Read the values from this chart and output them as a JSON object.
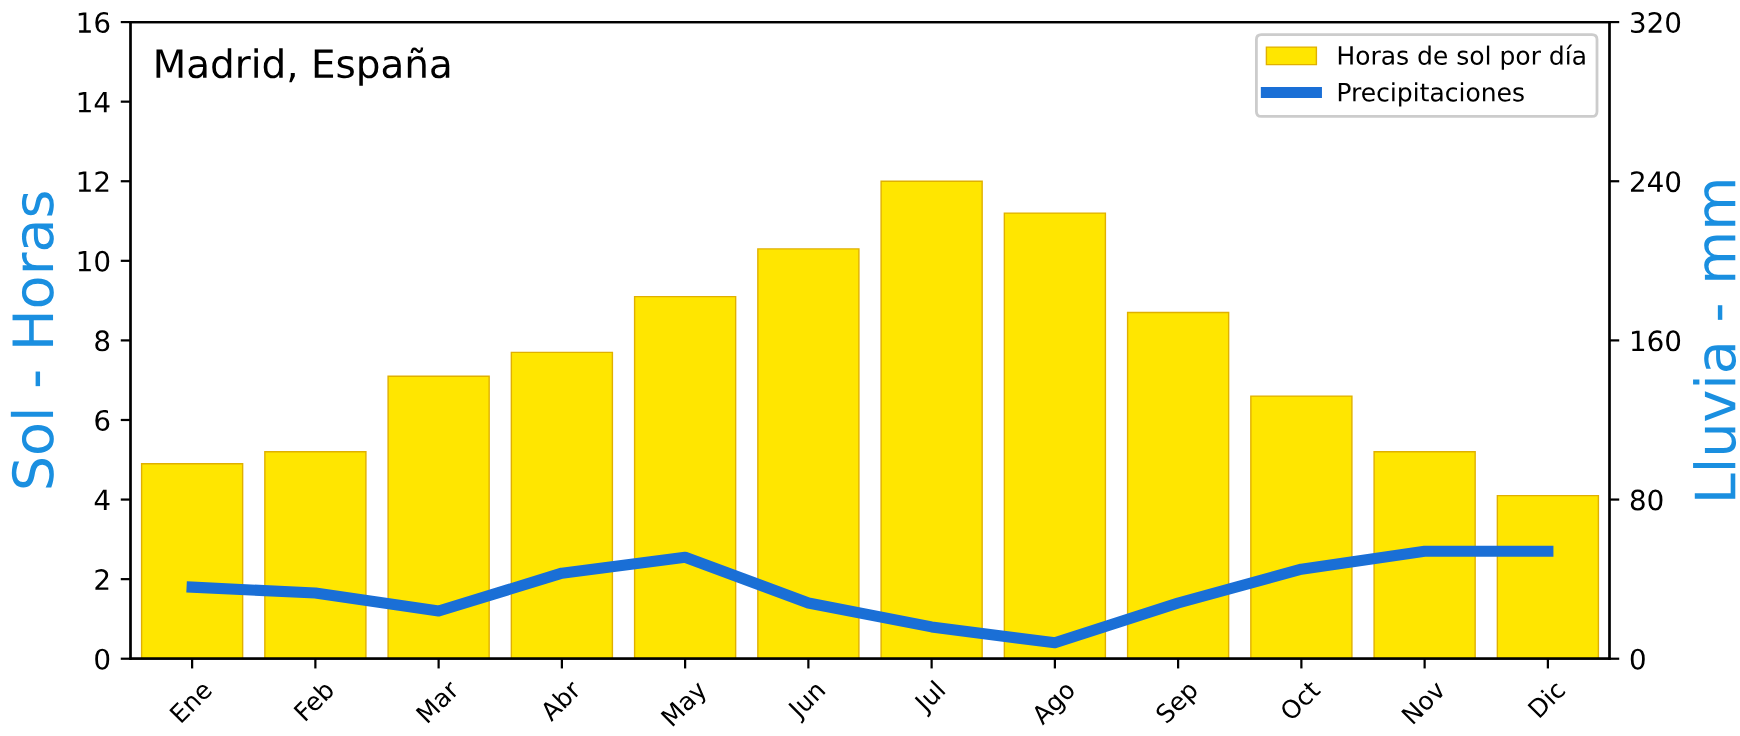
{
  "chart_data": {
    "type": "bar",
    "title": "Madrid, España",
    "ylabel": "Sol - Horas",
    "y2label": "Lluvia - mm",
    "categories": [
      "Ene",
      "Feb",
      "Mar",
      "Abr",
      "May",
      "Jun",
      "Jul",
      "Ago",
      "Sep",
      "Oct",
      "Nov",
      "Dic"
    ],
    "series": [
      {
        "name": "Horas de sol por día",
        "color": "#ffe600",
        "values": [
          4.9,
          5.2,
          7.1,
          7.7,
          9.1,
          10.3,
          12.0,
          11.2,
          8.7,
          6.6,
          5.2,
          4.1
        ]
      },
      {
        "name": "Precipitaciones",
        "type": "line",
        "axis": "y2",
        "color": "#1a6fd6",
        "values": [
          36,
          33,
          24,
          43,
          51,
          28,
          16,
          8,
          28,
          45,
          54,
          54
        ]
      }
    ],
    "ylim": [
      0,
      16
    ],
    "yticks": [
      0,
      2,
      4,
      6,
      8,
      10,
      12,
      14,
      16
    ],
    "y2lim": [
      0,
      320
    ],
    "y2ticks": [
      0,
      80,
      160,
      240,
      320
    ],
    "legend": "top right",
    "grid": false
  }
}
